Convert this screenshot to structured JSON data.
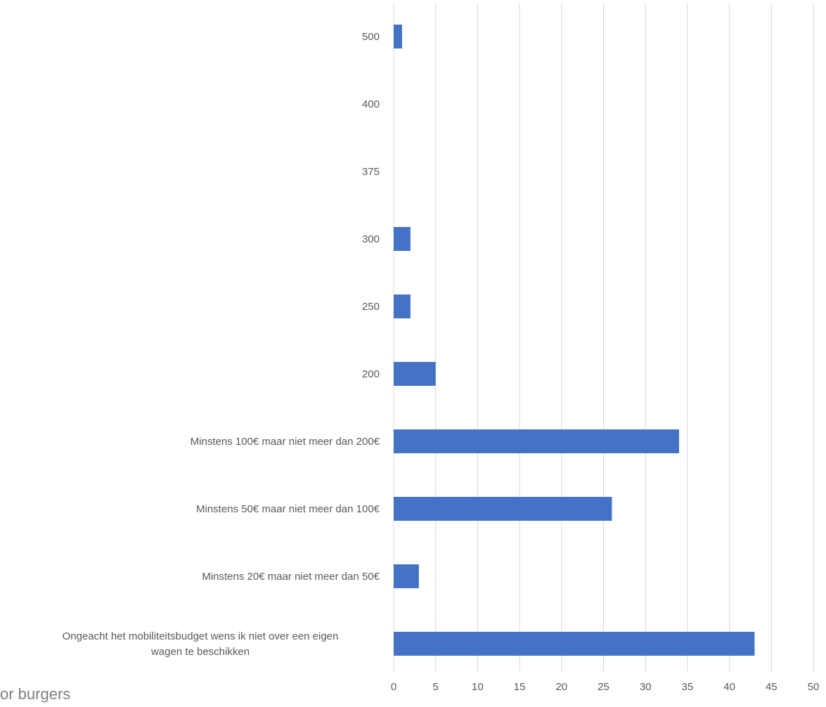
{
  "chart_data": {
    "type": "bar",
    "orientation": "horizontal",
    "categories": [
      "500",
      "400",
      "375",
      "300",
      "250",
      "200",
      "Minstens 100€ maar niet meer dan 200€",
      "Minstens 50€ maar niet meer dan 100€",
      "Minstens 20€ maar niet meer dan 50€",
      "Ongeacht het mobiliteitsbudget wens ik niet over een eigen wagen te beschikken"
    ],
    "category_lines": [
      [
        "500"
      ],
      [
        "400"
      ],
      [
        "375"
      ],
      [
        "300"
      ],
      [
        "250"
      ],
      [
        "200"
      ],
      [
        "Minstens 100€ maar niet meer dan 200€"
      ],
      [
        "Minstens 50€ maar niet meer dan 100€"
      ],
      [
        "Minstens 20€ maar niet meer dan 50€"
      ],
      [
        "Ongeacht het mobiliteitsbudget wens ik niet over een eigen",
        "wagen te beschikken"
      ]
    ],
    "values": [
      1,
      0,
      0,
      2,
      2,
      5,
      34,
      26,
      3,
      43
    ],
    "x_ticks": [
      "0",
      "5",
      "10",
      "15",
      "20",
      "25",
      "30",
      "35",
      "40",
      "45",
      "50"
    ],
    "xlim": [
      0,
      50
    ],
    "grid": "vertical",
    "bar_color": "#4472c4"
  },
  "footer": {
    "text": "or burgers"
  }
}
